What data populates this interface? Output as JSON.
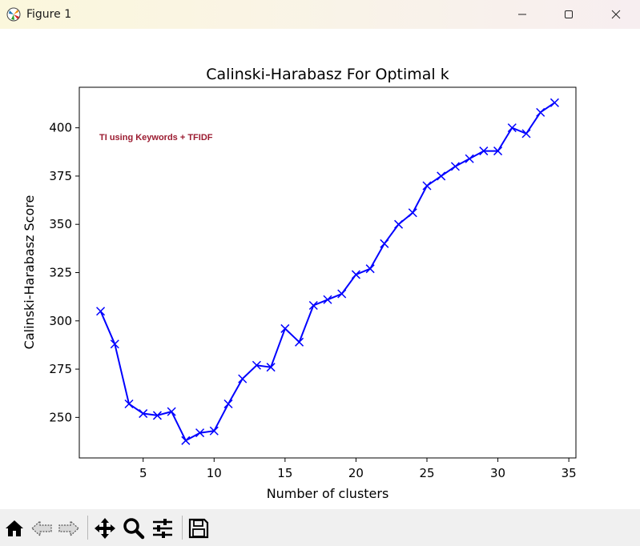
{
  "window": {
    "title": "Figure 1",
    "controls": [
      "minimize",
      "maximize",
      "close"
    ]
  },
  "toolbar": {
    "tools": [
      "home-icon",
      "back-icon",
      "forward-icon",
      "pan-icon",
      "zoom-icon",
      "configure-subplots-icon",
      "save-icon"
    ]
  },
  "chart_data": {
    "type": "line",
    "title": "Calinski-Harabasz For Optimal k",
    "xlabel": "Number of clusters",
    "ylabel": "Calinski-Harabasz Score",
    "annotation": "TI using Keywords + TFIDF",
    "annotation_color": "#9b1b30",
    "line_color": "#0000ff",
    "marker": "x",
    "xlim": [
      0.5,
      35.5
    ],
    "ylim": [
      229,
      421
    ],
    "xticks": [
      "5",
      "10",
      "15",
      "20",
      "25",
      "30",
      "35"
    ],
    "yticks": [
      "250",
      "275",
      "300",
      "325",
      "350",
      "375",
      "400"
    ],
    "grid": false,
    "x": [
      2,
      3,
      4,
      5,
      6,
      7,
      8,
      9,
      10,
      11,
      12,
      13,
      14,
      15,
      16,
      17,
      18,
      19,
      20,
      21,
      22,
      23,
      24,
      25,
      26,
      27,
      28,
      29,
      30,
      31,
      32,
      33,
      34
    ],
    "y": [
      305,
      288,
      257,
      252,
      251,
      253,
      238,
      242,
      243,
      257,
      270,
      277,
      276,
      296,
      289,
      308,
      311,
      314,
      324,
      327,
      340,
      350,
      356,
      370,
      375,
      380,
      384,
      388,
      388,
      400,
      397,
      408,
      413
    ]
  }
}
